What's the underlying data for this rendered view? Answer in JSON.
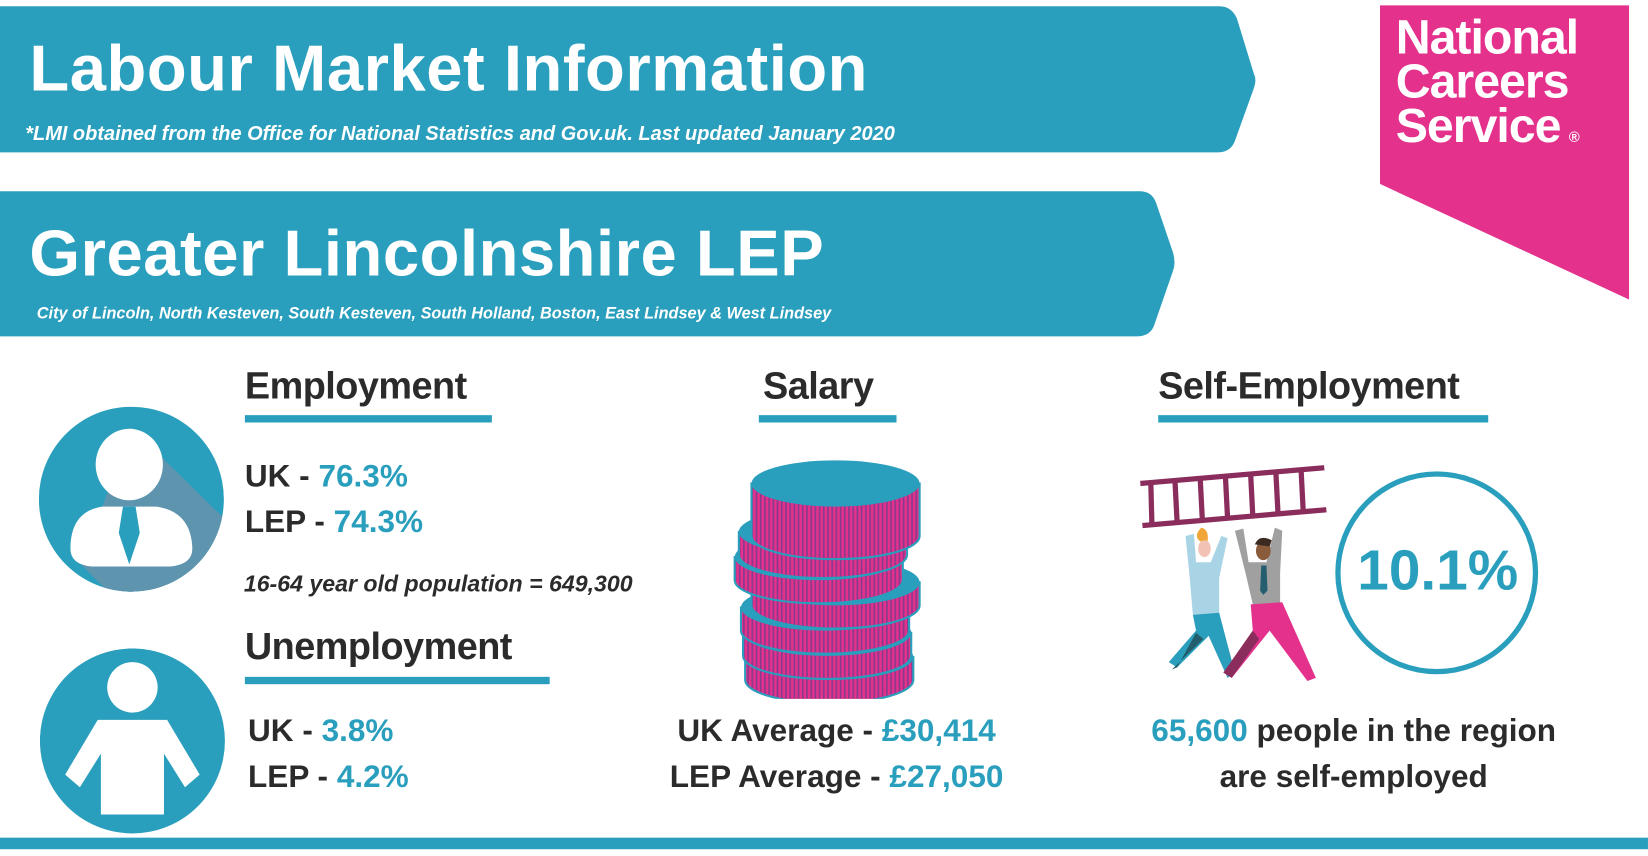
{
  "colors": {
    "accent": "#2a9fbd",
    "brand": "#e3318c",
    "text": "#2b2b2b"
  },
  "header": {
    "title": "Labour Market Information",
    "note": "*LMI obtained from the Office for National Statistics and Gov.uk. Last updated January 2020"
  },
  "region": {
    "title": "Greater Lincolnshire LEP",
    "areas": "City of Lincoln, North Kesteven, South Kesteven, South Holland, Boston, East Lindsey & West Lindsey"
  },
  "logo": {
    "line1": "National",
    "line2": "Careers",
    "line3": "Service",
    "mark": "®"
  },
  "employment": {
    "heading": "Employment",
    "icon": "employed-person-icon",
    "uk_label": "UK - ",
    "uk_value": "76.3%",
    "lep_label": "LEP - ",
    "lep_value": "74.3%",
    "population": "16-64 year old population = 649,300"
  },
  "unemployment": {
    "heading": "Unemployment",
    "icon": "unemployed-person-icon",
    "uk_label": "UK - ",
    "uk_value": "3.8%",
    "lep_label": "LEP - ",
    "lep_value": "4.2%"
  },
  "salary": {
    "heading": "Salary",
    "icon": "coin-stack-icon",
    "uk_label": "UK Average - ",
    "uk_value": "£30,414",
    "lep_label": "LEP Average - ",
    "lep_value": "£27,050"
  },
  "self_employment": {
    "heading": "Self-Employment",
    "icon": "people-carrying-ladder-illustration",
    "percent": "10.1%",
    "count": "65,600",
    "line1_rest": " people in the region",
    "line2": "are self-employed"
  }
}
